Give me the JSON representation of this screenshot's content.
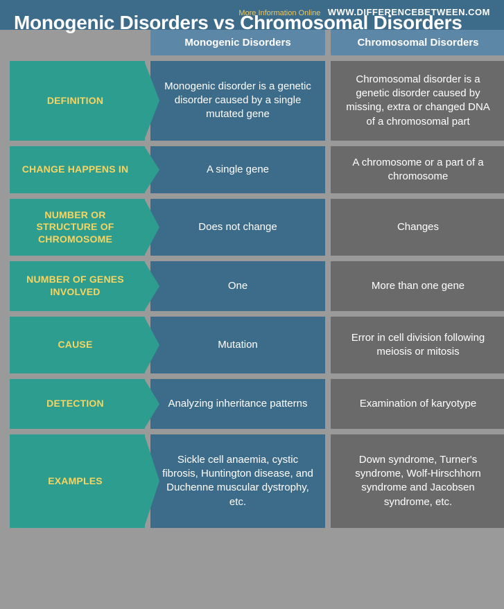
{
  "header": {
    "title": "Monogenic Disorders vs Chromosomal Disorders",
    "more_info": "More Information Online",
    "site": "WWW.DIFFERENCEBETWEEN.COM"
  },
  "columns": {
    "col1": "Monogenic Disorders",
    "col2": "Chromosomal Disorders"
  },
  "rows": [
    {
      "label": "DEFINITION",
      "mono": "Monogenic disorder is a genetic disorder caused by a single mutated gene",
      "chromo": "Chromosomal disorder is a genetic disorder caused by missing, extra or changed DNA of a chromosomal part"
    },
    {
      "label": "CHANGE HAPPENS IN",
      "mono": "A single gene",
      "chromo": "A chromosome or a part of a chromosome"
    },
    {
      "label": "NUMBER OR STRUCTURE OF CHROMOSOME",
      "mono": "Does not change",
      "chromo": "Changes"
    },
    {
      "label": "NUMBER OF GENES INVOLVED",
      "mono": "One",
      "chromo": "More than one gene"
    },
    {
      "label": "CAUSE",
      "mono": "Mutation",
      "chromo": "Error in cell division following meiosis or mitosis"
    },
    {
      "label": "DETECTION",
      "mono": "Analyzing inheritance patterns",
      "chromo": "Examination of karyotype"
    },
    {
      "label": "EXAMPLES",
      "mono": "Sickle cell anaemia, cystic fibrosis, Huntington disease, and Duchenne muscular dystrophy, etc.",
      "chromo": "Down syndrome, Turner's syndrome, Wolf-Hirschhorn syndrome and Jacobsen syndrome, etc."
    }
  ],
  "colors": {
    "header_bg": "#3d6b8a",
    "label_bg": "#2d9d8f",
    "label_text": "#f6d563",
    "mono_bg": "#3d6b8a",
    "chromo_bg": "#6a6a6a",
    "colhead_bg": "#5c87a6",
    "page_bg": "#9a9a9a"
  }
}
